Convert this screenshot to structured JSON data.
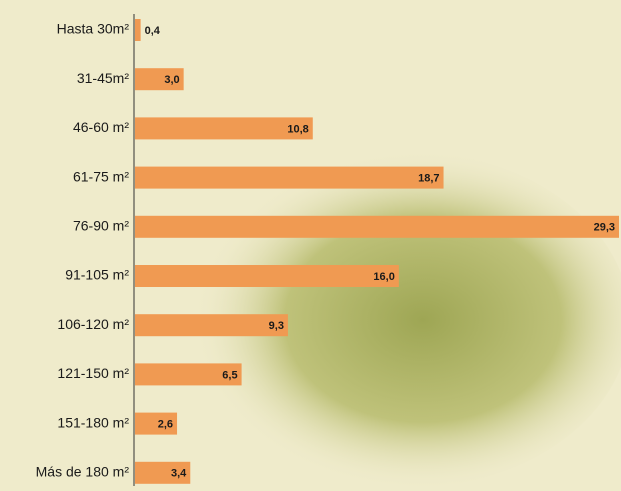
{
  "chart_data": {
    "type": "bar",
    "orientation": "horizontal",
    "categories": [
      "Hasta 30m²",
      "31-45m²",
      "46-60 m²",
      "61-75 m²",
      "76-90 m²",
      "91-105 m²",
      "106-120 m²",
      "121-150 m²",
      "151-180 m²",
      "Más de 180 m²"
    ],
    "values": [
      0.4,
      3.0,
      10.8,
      18.7,
      29.3,
      16.0,
      9.3,
      6.5,
      2.6,
      3.4
    ],
    "value_labels": [
      "0,4",
      "3,0",
      "10,8",
      "18,7",
      "29,3",
      "16,0",
      "9,3",
      "6,5",
      "2,6",
      "3,4"
    ],
    "color": "#f09a52"
  }
}
